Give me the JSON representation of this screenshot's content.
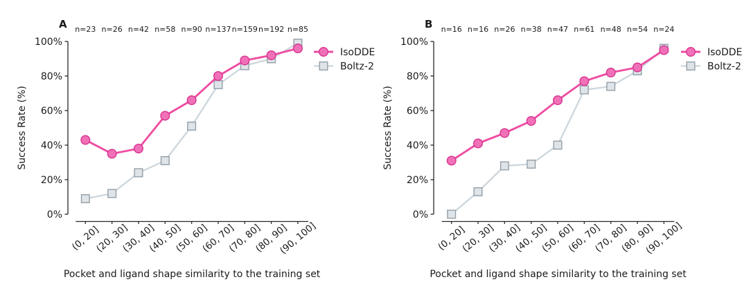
{
  "figure": {
    "background": "#ffffff",
    "text_color": "#1a1a1a",
    "muted_text_color": "#4a4a4a",
    "axis_color": "#262626"
  },
  "chart_data": [
    {
      "type": "line",
      "panel_label": "A",
      "n_labels": [
        "n=23",
        "n=26",
        "n=42",
        "n=58",
        "n=90",
        "n=137",
        "n=159",
        "n=192",
        "n=85"
      ],
      "categories": [
        "(0, 20]",
        "(20, 30]",
        "(30, 40]",
        "(40, 50]",
        "(50, 60]",
        "(60, 70]",
        "(70, 80]",
        "(80, 90]",
        "(90, 100]"
      ],
      "xlabel": "Pocket and ligand shape similarity to the training set",
      "ylabel": "Success Rate (%)",
      "ylim": [
        0,
        100
      ],
      "yticks": [
        0,
        20,
        40,
        60,
        80,
        100
      ],
      "ytick_labels": [
        "0%",
        "20%",
        "40%",
        "60%",
        "80%",
        "100%"
      ],
      "legend_position": "upper right",
      "grid": false,
      "series": [
        {
          "name": "IsoDDE",
          "marker": "circle",
          "color": "#ee4da2",
          "marker_fill": "#f171b8",
          "marker_edge": "#d6338f",
          "values": [
            43,
            35,
            38,
            57,
            66,
            80,
            89,
            92,
            96
          ]
        },
        {
          "name": "Boltz-2",
          "marker": "square",
          "color": "#ccd6dc",
          "marker_fill": "#dee4e8",
          "marker_edge": "#949fa7",
          "values": [
            9,
            12,
            24,
            31,
            51,
            75,
            86,
            90,
            99
          ]
        }
      ]
    },
    {
      "type": "line",
      "panel_label": "B",
      "n_labels": [
        "n=16",
        "n=16",
        "n=26",
        "n=38",
        "n=47",
        "n=61",
        "n=48",
        "n=54",
        "n=24"
      ],
      "categories": [
        "(0, 20]",
        "(20, 30]",
        "(30, 40]",
        "(40, 50]",
        "(50, 60]",
        "(60, 70]",
        "(70, 80]",
        "(80, 90]",
        "(90, 100]"
      ],
      "xlabel": "Pocket and ligand shape similarity to the training set",
      "ylabel": "Success Rate (%)",
      "ylim": [
        0,
        100
      ],
      "yticks": [
        0,
        20,
        40,
        60,
        80,
        100
      ],
      "ytick_labels": [
        "0%",
        "20%",
        "40%",
        "60%",
        "80%",
        "100%"
      ],
      "legend_position": "upper right",
      "grid": false,
      "series": [
        {
          "name": "IsoDDE",
          "marker": "circle",
          "color": "#ee4da2",
          "marker_fill": "#f171b8",
          "marker_edge": "#d6338f",
          "values": [
            31,
            41,
            47,
            54,
            66,
            77,
            82,
            85,
            95
          ]
        },
        {
          "name": "Boltz-2",
          "marker": "square",
          "color": "#ccd6dc",
          "marker_fill": "#dee4e8",
          "marker_edge": "#949fa7",
          "values": [
            0,
            13,
            28,
            29,
            40,
            72,
            74,
            83,
            96
          ]
        }
      ]
    }
  ]
}
